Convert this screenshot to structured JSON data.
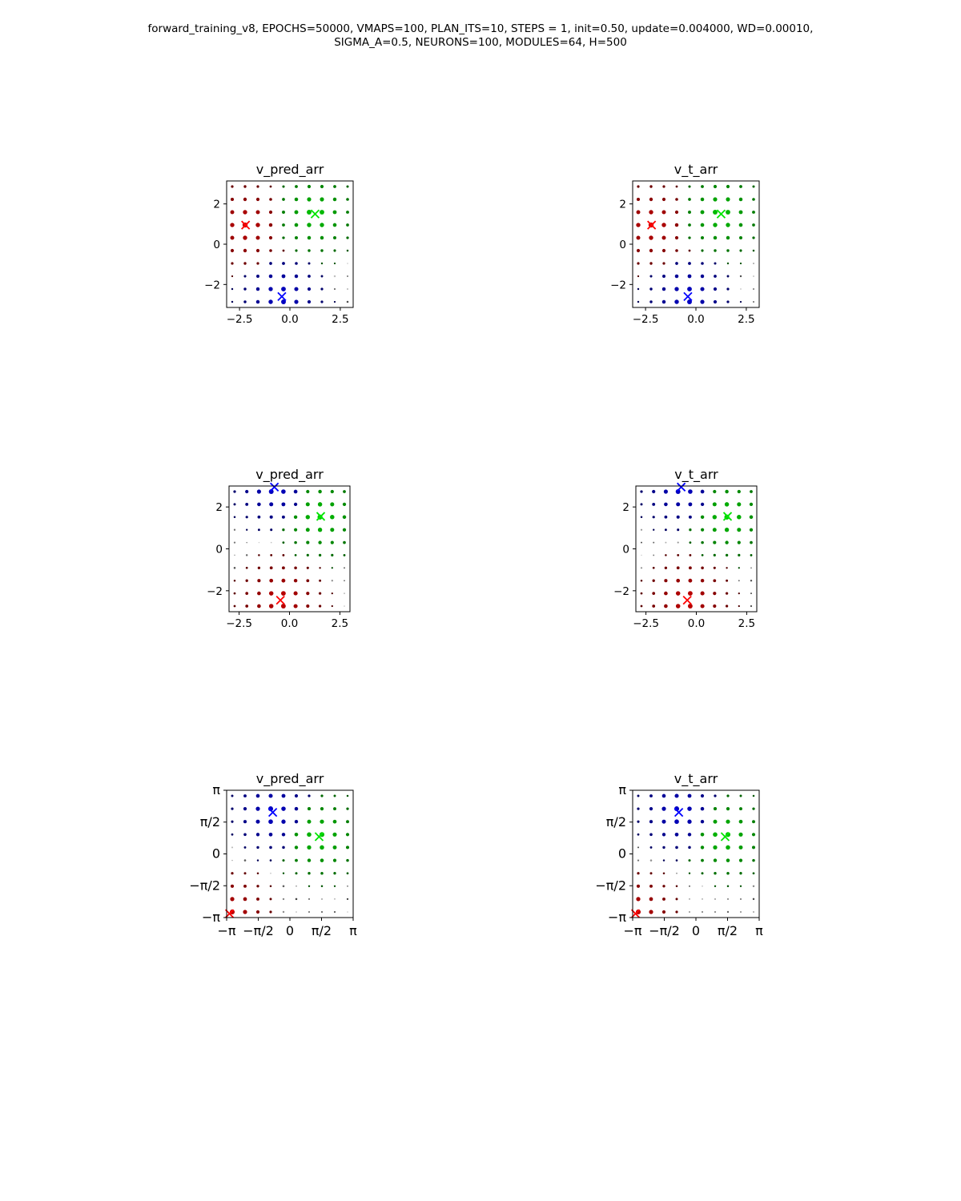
{
  "suptitle": {
    "line1": "forward_training_v8, EPOCHS=50000, VMAPS=100, PLAN_ITS=10, STEPS = 1, init=0.50, update=0.004000, WD=0.00010,",
    "line2": "SIGMA_A=0.5, NEURONS=100, MODULES=64, H=500"
  },
  "chart_data": [
    {
      "type": "scatter",
      "title": "v_pred_arr",
      "xlim": [
        -3.14,
        3.14
      ],
      "ylim": [
        -3.14,
        3.14
      ],
      "xticks": [
        {
          "v": -2.5,
          "label": "−2.5"
        },
        {
          "v": 0,
          "label": "0.0"
        },
        {
          "v": 2.5,
          "label": "2.5"
        }
      ],
      "yticks": [
        {
          "v": -2,
          "label": "−2"
        },
        {
          "v": 0,
          "label": "0"
        },
        {
          "v": 2,
          "label": "2"
        }
      ],
      "markers": [
        {
          "x": -2.2,
          "y": 0.95,
          "color": "#ff0000"
        },
        {
          "x": 1.25,
          "y": 1.5,
          "color": "#00e600"
        },
        {
          "x": -0.4,
          "y": -2.6,
          "color": "#0000ff"
        }
      ],
      "grid_points": "10x10 lattice, marker size/color encode prediction value",
      "colors": {
        "red": "#cc0000",
        "green": "#00cc00",
        "blue": "#0000cc",
        "magenta": "#cc00cc",
        "purple": "#8800aa"
      }
    },
    {
      "type": "scatter",
      "title": "v_t_arr",
      "xlim": [
        -3.14,
        3.14
      ],
      "ylim": [
        -3.14,
        3.14
      ],
      "xticks": [
        {
          "v": -2.5,
          "label": "−2.5"
        },
        {
          "v": 0,
          "label": "0.0"
        },
        {
          "v": 2.5,
          "label": "2.5"
        }
      ],
      "yticks": [
        {
          "v": -2,
          "label": "−2"
        },
        {
          "v": 0,
          "label": "0"
        },
        {
          "v": 2,
          "label": "2"
        }
      ],
      "markers": [
        {
          "x": -2.2,
          "y": 0.95,
          "color": "#ff0000"
        },
        {
          "x": 1.25,
          "y": 1.5,
          "color": "#00e600"
        },
        {
          "x": -0.4,
          "y": -2.6,
          "color": "#0000ff"
        }
      ]
    },
    {
      "type": "scatter",
      "title": "v_pred_arr",
      "xlim": [
        -3.0,
        3.0
      ],
      "ylim": [
        -3.0,
        3.0
      ],
      "xticks": [
        {
          "v": -2.5,
          "label": "−2.5"
        },
        {
          "v": 0,
          "label": "0.0"
        },
        {
          "v": 2.5,
          "label": "2.5"
        }
      ],
      "yticks": [
        {
          "v": -2,
          "label": "−2"
        },
        {
          "v": 0,
          "label": "0"
        },
        {
          "v": 2,
          "label": "2"
        }
      ],
      "markers": [
        {
          "x": -0.75,
          "y": 2.95,
          "color": "#0000ff"
        },
        {
          "x": 1.55,
          "y": 1.55,
          "color": "#00e600"
        },
        {
          "x": -0.45,
          "y": -2.45,
          "color": "#ff0000"
        }
      ]
    },
    {
      "type": "scatter",
      "title": "v_t_arr",
      "xlim": [
        -3.0,
        3.0
      ],
      "ylim": [
        -3.0,
        3.0
      ],
      "xticks": [
        {
          "v": -2.5,
          "label": "−2.5"
        },
        {
          "v": 0,
          "label": "0.0"
        },
        {
          "v": 2.5,
          "label": "2.5"
        }
      ],
      "yticks": [
        {
          "v": -2,
          "label": "−2"
        },
        {
          "v": 0,
          "label": "0"
        },
        {
          "v": 2,
          "label": "2"
        }
      ],
      "markers": [
        {
          "x": -0.75,
          "y": 2.95,
          "color": "#0000ff"
        },
        {
          "x": 1.55,
          "y": 1.55,
          "color": "#00e600"
        },
        {
          "x": -0.45,
          "y": -2.45,
          "color": "#ff0000"
        }
      ]
    },
    {
      "type": "scatter",
      "title": "v_pred_arr",
      "xlim": [
        -3.1416,
        3.1416
      ],
      "ylim": [
        -3.1416,
        3.1416
      ],
      "xticks": [
        {
          "v": -3.1416,
          "label": "−π"
        },
        {
          "v": -1.5708,
          "label": "−π/2"
        },
        {
          "v": 0,
          "label": "0"
        },
        {
          "v": 1.5708,
          "label": "π/2"
        },
        {
          "v": 3.1416,
          "label": "π"
        }
      ],
      "yticks": [
        {
          "v": -3.1416,
          "label": "−π"
        },
        {
          "v": -1.5708,
          "label": "−π/2"
        },
        {
          "v": 0,
          "label": "0"
        },
        {
          "v": 1.5708,
          "label": "π/2"
        },
        {
          "v": 3.1416,
          "label": "π"
        }
      ],
      "markers": [
        {
          "x": -3.0,
          "y": -2.95,
          "color": "#ff0000"
        },
        {
          "x": -0.85,
          "y": 2.05,
          "color": "#0000ff"
        },
        {
          "x": 1.45,
          "y": 0.85,
          "color": "#00e600"
        }
      ]
    },
    {
      "type": "scatter",
      "title": "v_t_arr",
      "xlim": [
        -3.1416,
        3.1416
      ],
      "ylim": [
        -3.1416,
        3.1416
      ],
      "xticks": [
        {
          "v": -3.1416,
          "label": "−π"
        },
        {
          "v": -1.5708,
          "label": "−π/2"
        },
        {
          "v": 0,
          "label": "0"
        },
        {
          "v": 1.5708,
          "label": "π/2"
        },
        {
          "v": 3.1416,
          "label": "π"
        }
      ],
      "yticks": [
        {
          "v": -3.1416,
          "label": "−π"
        },
        {
          "v": -1.5708,
          "label": "−π/2"
        },
        {
          "v": 0,
          "label": "0"
        },
        {
          "v": 1.5708,
          "label": "π/2"
        },
        {
          "v": 3.1416,
          "label": "π"
        }
      ],
      "markers": [
        {
          "x": -3.0,
          "y": -2.95,
          "color": "#ff0000"
        },
        {
          "x": -0.85,
          "y": 2.05,
          "color": "#0000ff"
        },
        {
          "x": 1.45,
          "y": 0.85,
          "color": "#00e600"
        }
      ]
    }
  ]
}
